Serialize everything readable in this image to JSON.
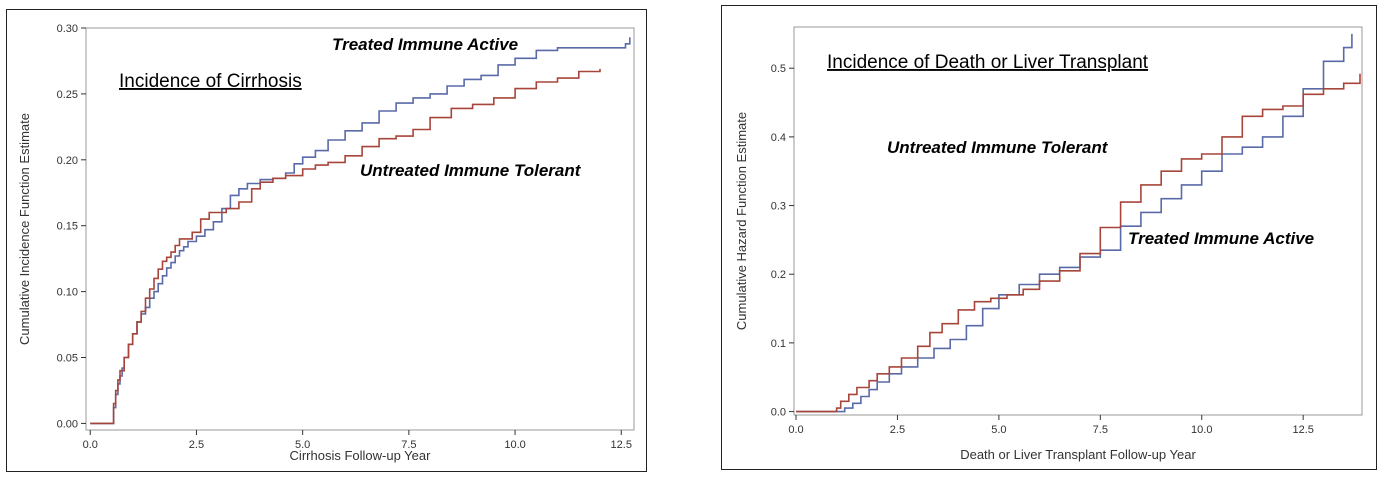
{
  "colors": {
    "blue": "#5a6aa8",
    "red": "#a8453a",
    "frame": "#999999"
  },
  "chart_data": [
    {
      "type": "line",
      "title": "Incidence of Cirrhosis",
      "xlabel": "Cirrhosis Follow-up Year",
      "ylabel": "Cumulative Incidence Function Estimate",
      "xlim": [
        -0.1,
        12.8
      ],
      "ylim": [
        -0.005,
        0.3
      ],
      "xticks": [
        0.0,
        2.5,
        5.0,
        7.5,
        10.0,
        12.5
      ],
      "xtick_labels": [
        "0.0",
        "2.5",
        "5.0",
        "7.5",
        "10.0",
        "12.5"
      ],
      "yticks": [
        0.0,
        0.05,
        0.1,
        0.15,
        0.2,
        0.25,
        0.3
      ],
      "ytick_labels": [
        "0.00",
        "0.05",
        "0.10",
        "0.15",
        "0.20",
        "0.25",
        "0.30"
      ],
      "series": [
        {
          "name": "Treated Immune Active",
          "color": "#5a6aa8",
          "x": [
            0.0,
            0.5,
            0.55,
            0.6,
            0.65,
            0.7,
            0.75,
            0.8,
            0.9,
            1.0,
            1.1,
            1.2,
            1.3,
            1.4,
            1.5,
            1.6,
            1.7,
            1.8,
            1.9,
            2.0,
            2.1,
            2.2,
            2.3,
            2.5,
            2.7,
            2.9,
            3.1,
            3.3,
            3.5,
            3.7,
            4.0,
            4.3,
            4.6,
            4.8,
            5.0,
            5.3,
            5.6,
            6.0,
            6.4,
            6.8,
            7.2,
            7.6,
            8.0,
            8.4,
            8.8,
            9.2,
            9.6,
            10.0,
            10.5,
            11.0,
            11.5,
            12.0,
            12.5,
            12.6,
            12.7
          ],
          "y": [
            0.0,
            0.0,
            0.012,
            0.022,
            0.03,
            0.036,
            0.042,
            0.05,
            0.06,
            0.068,
            0.077,
            0.083,
            0.088,
            0.095,
            0.1,
            0.106,
            0.112,
            0.118,
            0.122,
            0.127,
            0.131,
            0.134,
            0.138,
            0.142,
            0.147,
            0.153,
            0.163,
            0.173,
            0.178,
            0.182,
            0.185,
            0.186,
            0.19,
            0.197,
            0.202,
            0.207,
            0.215,
            0.222,
            0.228,
            0.237,
            0.243,
            0.247,
            0.25,
            0.256,
            0.261,
            0.264,
            0.272,
            0.277,
            0.283,
            0.285,
            0.285,
            0.285,
            0.285,
            0.288,
            0.293
          ]
        },
        {
          "name": "Untreated Immune Tolerant",
          "color": "#a8453a",
          "x": [
            0.0,
            0.5,
            0.55,
            0.6,
            0.65,
            0.7,
            0.8,
            0.9,
            1.0,
            1.1,
            1.2,
            1.3,
            1.4,
            1.5,
            1.6,
            1.7,
            1.8,
            1.9,
            2.0,
            2.1,
            2.2,
            2.4,
            2.6,
            2.8,
            3.0,
            3.2,
            3.5,
            3.8,
            4.0,
            4.3,
            4.6,
            5.0,
            5.3,
            5.6,
            6.0,
            6.4,
            6.8,
            7.2,
            7.6,
            8.0,
            8.5,
            9.0,
            9.5,
            10.0,
            10.5,
            11.0,
            11.5,
            12.0
          ],
          "y": [
            0.0,
            0.0,
            0.015,
            0.025,
            0.033,
            0.04,
            0.05,
            0.06,
            0.068,
            0.077,
            0.085,
            0.095,
            0.102,
            0.11,
            0.117,
            0.123,
            0.126,
            0.13,
            0.135,
            0.14,
            0.14,
            0.145,
            0.155,
            0.16,
            0.16,
            0.163,
            0.168,
            0.178,
            0.183,
            0.186,
            0.188,
            0.193,
            0.196,
            0.198,
            0.203,
            0.21,
            0.216,
            0.218,
            0.223,
            0.232,
            0.239,
            0.242,
            0.247,
            0.254,
            0.259,
            0.262,
            0.267,
            0.269
          ]
        }
      ],
      "annotations": [
        "Treated Immune Active",
        "Untreated Immune Tolerant"
      ]
    },
    {
      "type": "line",
      "title": "Incidence of Death or Liver Transplant",
      "xlabel": "Death or Liver Transplant Follow-up Year",
      "ylabel": "Cumulative Hazard Function Estimate",
      "xlim": [
        -0.05,
        13.95
      ],
      "ylim": [
        -0.005,
        0.56
      ],
      "xticks": [
        0.0,
        2.5,
        5.0,
        7.5,
        10.0,
        12.5
      ],
      "xtick_labels": [
        "0.0",
        "2.5",
        "5.0",
        "7.5",
        "10.0",
        "12.5"
      ],
      "yticks": [
        0.0,
        0.1,
        0.2,
        0.3,
        0.4,
        0.5
      ],
      "ytick_labels": [
        "0.0",
        "0.1",
        "0.2",
        "0.3",
        "0.4",
        "0.5"
      ],
      "series": [
        {
          "name": "Treated Immune Active",
          "color": "#5a6aa8",
          "x": [
            0.0,
            1.0,
            1.2,
            1.4,
            1.6,
            1.8,
            2.0,
            2.3,
            2.6,
            3.0,
            3.4,
            3.8,
            4.2,
            4.6,
            5.0,
            5.5,
            6.0,
            6.5,
            7.0,
            7.5,
            8.0,
            8.5,
            9.0,
            9.5,
            10.0,
            10.5,
            11.0,
            11.5,
            12.0,
            12.5,
            13.0,
            13.5,
            13.7
          ],
          "y": [
            0.0,
            0.0,
            0.005,
            0.012,
            0.022,
            0.032,
            0.043,
            0.055,
            0.065,
            0.078,
            0.092,
            0.105,
            0.125,
            0.15,
            0.17,
            0.185,
            0.2,
            0.21,
            0.225,
            0.235,
            0.27,
            0.29,
            0.31,
            0.33,
            0.35,
            0.375,
            0.385,
            0.4,
            0.43,
            0.47,
            0.51,
            0.53,
            0.55
          ]
        },
        {
          "name": "Untreated Immune Tolerant",
          "color": "#a8453a",
          "x": [
            0.0,
            1.0,
            1.1,
            1.3,
            1.5,
            1.8,
            2.0,
            2.3,
            2.6,
            3.0,
            3.3,
            3.6,
            4.0,
            4.4,
            4.8,
            5.2,
            5.6,
            6.0,
            6.5,
            7.0,
            7.5,
            8.0,
            8.5,
            9.0,
            9.5,
            10.0,
            10.5,
            11.0,
            11.5,
            12.0,
            12.5,
            13.0,
            13.5,
            13.9
          ],
          "y": [
            0.0,
            0.005,
            0.015,
            0.025,
            0.035,
            0.045,
            0.055,
            0.065,
            0.078,
            0.095,
            0.115,
            0.128,
            0.148,
            0.16,
            0.165,
            0.17,
            0.178,
            0.19,
            0.205,
            0.23,
            0.268,
            0.305,
            0.33,
            0.35,
            0.368,
            0.375,
            0.4,
            0.43,
            0.44,
            0.445,
            0.462,
            0.47,
            0.478,
            0.492
          ]
        }
      ],
      "annotations": [
        "Untreated Immune Tolerant",
        "Treated Immune Active"
      ]
    }
  ]
}
